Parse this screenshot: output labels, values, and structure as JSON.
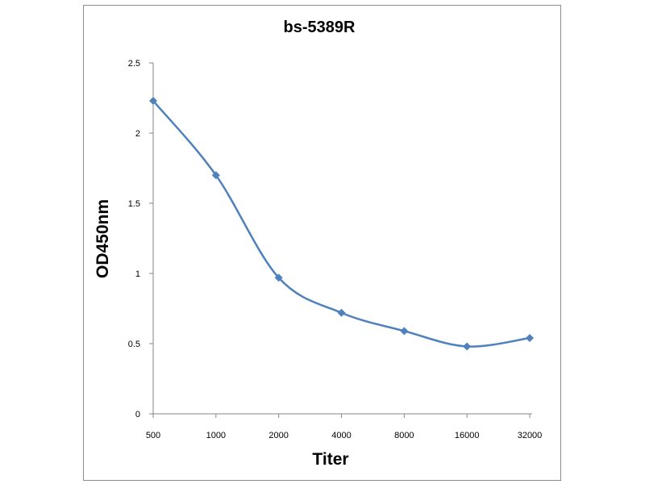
{
  "chart_data": {
    "type": "line",
    "title": "bs-5389R",
    "xlabel": "Titer",
    "ylabel": "OD450nm",
    "categories": [
      "500",
      "1000",
      "2000",
      "4000",
      "8000",
      "16000",
      "32000"
    ],
    "series": [
      {
        "values": [
          2.23,
          1.7,
          0.97,
          0.72,
          0.59,
          0.48,
          0.54
        ]
      }
    ],
    "ylim": [
      0,
      2.5
    ],
    "yticks": [
      "0",
      "0.5",
      "1",
      "1.5",
      "2",
      "2.5"
    ],
    "grid": false,
    "legend": "none",
    "marker": "diamond",
    "smooth": true,
    "colors": {
      "series": "#4f81bd",
      "axis": "#868686",
      "border": "#8c8c8c"
    }
  }
}
